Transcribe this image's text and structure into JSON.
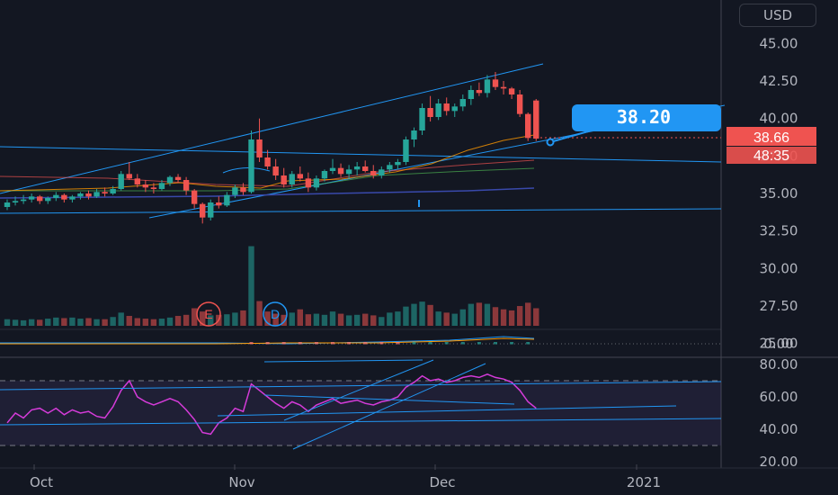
{
  "currency_label": "USD",
  "colors": {
    "background": "#131722",
    "up": "#26a69a",
    "down": "#ef5350",
    "trendline": "#2196f3",
    "rsi": "#d53bd9",
    "callout": "#2196f3"
  },
  "chart_data": {
    "type": "candlestick",
    "price_axis": {
      "ticks": [
        "45.00",
        "42.50",
        "40.00",
        "37.50",
        "35.00",
        "32.50",
        "30.00",
        "27.50",
        "25.00"
      ],
      "range": [
        23.9,
        47.9
      ]
    },
    "time_axis": {
      "labels": [
        "Oct",
        "Nov",
        "Dec",
        "2021"
      ]
    },
    "price_label": {
      "value": "38.66",
      "countdown": "48:35"
    },
    "callout": {
      "text": "38.20"
    },
    "event_markers": [
      "E",
      "D"
    ],
    "candles": [
      [
        34.1,
        34.6,
        33.9,
        34.4
      ],
      [
        34.4,
        34.8,
        34.2,
        34.5
      ],
      [
        34.5,
        34.9,
        34.3,
        34.6
      ],
      [
        34.6,
        35.0,
        34.4,
        34.8
      ],
      [
        34.8,
        34.9,
        34.3,
        34.5
      ],
      [
        34.5,
        34.8,
        34.3,
        34.7
      ],
      [
        34.7,
        35.1,
        34.5,
        34.9
      ],
      [
        34.9,
        35.0,
        34.4,
        34.6
      ],
      [
        34.6,
        34.9,
        34.4,
        34.8
      ],
      [
        34.8,
        35.1,
        34.6,
        35.0
      ],
      [
        35.0,
        35.2,
        34.6,
        34.8
      ],
      [
        34.8,
        35.3,
        34.7,
        35.1
      ],
      [
        35.1,
        35.4,
        34.8,
        35.0
      ],
      [
        35.0,
        35.5,
        34.9,
        35.3
      ],
      [
        35.3,
        36.5,
        35.2,
        36.3
      ],
      [
        36.3,
        37.1,
        35.9,
        36.0
      ],
      [
        36.0,
        36.3,
        35.4,
        35.6
      ],
      [
        35.6,
        35.9,
        35.1,
        35.4
      ],
      [
        35.4,
        35.7,
        35.0,
        35.3
      ],
      [
        35.3,
        35.9,
        35.2,
        35.7
      ],
      [
        35.7,
        36.2,
        35.5,
        36.1
      ],
      [
        36.1,
        36.3,
        35.7,
        35.9
      ],
      [
        35.9,
        36.1,
        34.9,
        35.2
      ],
      [
        35.2,
        35.3,
        34.0,
        34.3
      ],
      [
        34.3,
        34.4,
        33.0,
        33.4
      ],
      [
        33.4,
        34.6,
        33.2,
        34.4
      ],
      [
        34.4,
        34.8,
        34.0,
        34.2
      ],
      [
        34.2,
        35.1,
        34.1,
        34.9
      ],
      [
        34.9,
        35.6,
        34.7,
        35.4
      ],
      [
        35.4,
        35.7,
        34.9,
        35.1
      ],
      [
        35.1,
        39.2,
        35.0,
        38.6
      ],
      [
        38.6,
        40.0,
        37.1,
        37.4
      ],
      [
        37.4,
        37.9,
        36.6,
        36.8
      ],
      [
        36.8,
        37.3,
        35.9,
        36.2
      ],
      [
        36.2,
        36.7,
        35.4,
        35.6
      ],
      [
        35.6,
        36.5,
        35.4,
        36.3
      ],
      [
        36.3,
        36.8,
        35.8,
        36.0
      ],
      [
        36.0,
        36.4,
        35.1,
        35.4
      ],
      [
        35.4,
        36.2,
        35.2,
        36.0
      ],
      [
        36.0,
        36.6,
        35.8,
        36.5
      ],
      [
        36.5,
        37.3,
        36.3,
        36.7
      ],
      [
        36.7,
        37.0,
        36.1,
        36.3
      ],
      [
        36.3,
        36.9,
        36.0,
        36.6
      ],
      [
        36.6,
        37.1,
        36.2,
        36.8
      ],
      [
        36.8,
        37.2,
        36.4,
        36.5
      ],
      [
        36.5,
        36.9,
        36.0,
        36.2
      ],
      [
        36.2,
        36.8,
        36.0,
        36.6
      ],
      [
        36.6,
        37.1,
        36.4,
        36.9
      ],
      [
        36.9,
        37.3,
        36.6,
        37.1
      ],
      [
        37.1,
        38.8,
        36.9,
        38.6
      ],
      [
        38.6,
        39.4,
        38.1,
        39.2
      ],
      [
        39.2,
        41.0,
        38.9,
        40.7
      ],
      [
        40.7,
        41.5,
        39.8,
        40.1
      ],
      [
        40.1,
        41.3,
        39.9,
        41.0
      ],
      [
        41.0,
        41.4,
        40.2,
        40.5
      ],
      [
        40.5,
        41.0,
        40.1,
        40.8
      ],
      [
        40.8,
        41.6,
        40.5,
        41.3
      ],
      [
        41.3,
        42.2,
        40.9,
        41.9
      ],
      [
        41.9,
        42.4,
        41.5,
        41.7
      ],
      [
        41.7,
        42.9,
        41.4,
        42.6
      ],
      [
        42.6,
        43.1,
        41.9,
        42.1
      ],
      [
        42.1,
        42.5,
        41.6,
        42.0
      ],
      [
        42.0,
        42.1,
        41.3,
        41.6
      ],
      [
        41.6,
        41.9,
        40.1,
        40.3
      ],
      [
        40.3,
        40.4,
        38.5,
        38.7
      ],
      [
        41.2,
        41.3,
        38.5,
        38.66
      ]
    ],
    "volume": [
      1.2,
      1.1,
      1.0,
      1.2,
      1.1,
      1.3,
      1.5,
      1.4,
      1.5,
      1.3,
      1.4,
      1.2,
      1.2,
      1.6,
      2.4,
      1.8,
      1.4,
      1.3,
      1.2,
      1.3,
      1.5,
      1.8,
      2.0,
      3.2,
      2.6,
      1.9,
      2.0,
      2.1,
      2.4,
      2.8,
      14.5,
      4.5,
      2.6,
      2.2,
      2.0,
      2.4,
      3.0,
      2.1,
      2.2,
      2.0,
      2.6,
      2.2,
      1.9,
      2.0,
      2.2,
      1.9,
      1.6,
      2.4,
      2.6,
      3.5,
      4.0,
      4.4,
      3.8,
      2.6,
      2.4,
      2.2,
      3.0,
      4.0,
      4.2,
      4.0,
      3.4,
      3.0,
      2.8,
      3.6,
      4.2,
      3.2
    ],
    "rsi_axis": {
      "ticks": [
        "80.00",
        "60.00",
        "40.00",
        "20.00"
      ]
    },
    "macd_axis": {
      "ticks": [
        "0.00"
      ]
    }
  }
}
